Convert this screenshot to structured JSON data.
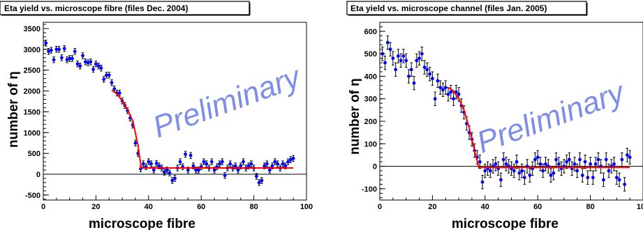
{
  "chart_data": [
    {
      "type": "scatter",
      "title": "Eta yield vs. microscope fibre (files Dec. 2004)",
      "xlabel": "microscope  fibre",
      "ylabel": "number of η",
      "watermark": "Preliminary",
      "xlim": [
        0,
        100
      ],
      "ylim": [
        -620,
        3650
      ],
      "xticks": [
        0,
        20,
        40,
        60,
        80,
        100
      ],
      "yticks": [
        -500,
        0,
        500,
        1000,
        1500,
        2000,
        2500,
        3000,
        3500
      ],
      "grid": false,
      "marker_color": "#0000ff",
      "fit_color": "#ff0000",
      "points": [
        [
          1,
          3150,
          70
        ],
        [
          2,
          2950,
          70
        ],
        [
          3,
          2980,
          70
        ],
        [
          4,
          2750,
          70
        ],
        [
          5,
          3000,
          70
        ],
        [
          6,
          3000,
          70
        ],
        [
          7,
          2800,
          70
        ],
        [
          8,
          3020,
          70
        ],
        [
          9,
          2750,
          70
        ],
        [
          10,
          2780,
          70
        ],
        [
          11,
          2780,
          70
        ],
        [
          12,
          2950,
          70
        ],
        [
          13,
          2650,
          70
        ],
        [
          14,
          2600,
          70
        ],
        [
          15,
          2850,
          70
        ],
        [
          16,
          2700,
          70
        ],
        [
          17,
          2680,
          70
        ],
        [
          18,
          2700,
          70
        ],
        [
          19,
          2520,
          70
        ],
        [
          20,
          2650,
          70
        ],
        [
          21,
          2600,
          70
        ],
        [
          22,
          2550,
          70
        ],
        [
          23,
          2280,
          70
        ],
        [
          24,
          2380,
          70
        ],
        [
          25,
          2380,
          70
        ],
        [
          26,
          2200,
          70
        ],
        [
          27,
          2050,
          70
        ],
        [
          28,
          1950,
          70
        ],
        [
          29,
          1950,
          70
        ],
        [
          30,
          1760,
          70
        ],
        [
          31,
          1650,
          70
        ],
        [
          32,
          1530,
          70
        ],
        [
          33,
          1350,
          70
        ],
        [
          34,
          1180,
          70
        ],
        [
          35,
          750,
          70
        ],
        [
          36,
          500,
          70
        ],
        [
          37,
          130,
          70
        ],
        [
          38,
          250,
          70
        ],
        [
          39,
          180,
          70
        ],
        [
          40,
          300,
          70
        ],
        [
          41,
          250,
          70
        ],
        [
          42,
          100,
          70
        ],
        [
          43,
          260,
          70
        ],
        [
          44,
          200,
          70
        ],
        [
          45,
          150,
          70
        ],
        [
          46,
          50,
          70
        ],
        [
          47,
          100,
          70
        ],
        [
          48,
          30,
          70
        ],
        [
          49,
          -150,
          70
        ],
        [
          50,
          -100,
          70
        ],
        [
          51,
          150,
          70
        ],
        [
          52,
          300,
          70
        ],
        [
          53,
          180,
          70
        ],
        [
          54,
          480,
          70
        ],
        [
          55,
          100,
          70
        ],
        [
          56,
          450,
          70
        ],
        [
          57,
          200,
          70
        ],
        [
          58,
          100,
          70
        ],
        [
          59,
          100,
          70
        ],
        [
          60,
          180,
          70
        ],
        [
          61,
          300,
          70
        ],
        [
          62,
          250,
          70
        ],
        [
          63,
          150,
          70
        ],
        [
          64,
          300,
          70
        ],
        [
          65,
          100,
          70
        ],
        [
          66,
          180,
          70
        ],
        [
          67,
          250,
          70
        ],
        [
          68,
          300,
          70
        ],
        [
          69,
          -30,
          70
        ],
        [
          70,
          150,
          70
        ],
        [
          71,
          250,
          70
        ],
        [
          72,
          150,
          70
        ],
        [
          73,
          200,
          70
        ],
        [
          74,
          100,
          70
        ],
        [
          75,
          200,
          70
        ],
        [
          76,
          300,
          70
        ],
        [
          77,
          150,
          70
        ],
        [
          78,
          200,
          70
        ],
        [
          79,
          250,
          70
        ],
        [
          80,
          150,
          70
        ],
        [
          81,
          -50,
          70
        ],
        [
          82,
          -200,
          70
        ],
        [
          83,
          -150,
          70
        ],
        [
          84,
          200,
          70
        ],
        [
          85,
          250,
          70
        ],
        [
          86,
          100,
          70
        ],
        [
          87,
          200,
          70
        ],
        [
          88,
          300,
          70
        ],
        [
          89,
          250,
          70
        ],
        [
          90,
          150,
          70
        ],
        [
          91,
          250,
          70
        ],
        [
          92,
          200,
          70
        ],
        [
          93,
          300,
          70
        ],
        [
          94,
          350,
          70
        ],
        [
          95,
          380,
          70
        ]
      ],
      "fit": [
        [
          26,
          2020
        ],
        [
          28,
          1930
        ],
        [
          30,
          1760
        ],
        [
          32,
          1560
        ],
        [
          34,
          1280
        ],
        [
          36,
          700
        ],
        [
          37.2,
          150
        ],
        [
          40,
          150
        ],
        [
          60,
          150
        ],
        [
          80,
          150
        ],
        [
          95,
          150
        ]
      ]
    },
    {
      "type": "scatter",
      "title": "Eta yield vs. microscope channel (files Jan. 2005)",
      "xlabel": "microscope  fibre",
      "ylabel": "number of η",
      "watermark": "Preliminary",
      "xlim": [
        0,
        100
      ],
      "ylim": [
        -150,
        640
      ],
      "xticks": [
        0,
        20,
        40,
        60,
        80,
        100
      ],
      "yticks": [
        -100,
        0,
        100,
        200,
        300,
        400,
        500,
        600
      ],
      "grid": false,
      "marker_color": "#0000ff",
      "fit_color": "#ff0000",
      "points": [
        [
          1,
          500,
          30
        ],
        [
          2,
          460,
          30
        ],
        [
          3,
          550,
          30
        ],
        [
          4,
          520,
          30
        ],
        [
          5,
          480,
          30
        ],
        [
          6,
          430,
          30
        ],
        [
          7,
          490,
          30
        ],
        [
          8,
          470,
          30
        ],
        [
          9,
          490,
          30
        ],
        [
          10,
          470,
          30
        ],
        [
          11,
          400,
          30
        ],
        [
          12,
          430,
          30
        ],
        [
          13,
          370,
          30
        ],
        [
          14,
          470,
          30
        ],
        [
          15,
          480,
          30
        ],
        [
          16,
          500,
          30
        ],
        [
          17,
          440,
          30
        ],
        [
          18,
          430,
          30
        ],
        [
          19,
          410,
          30
        ],
        [
          20,
          390,
          30
        ],
        [
          21,
          300,
          30
        ],
        [
          22,
          380,
          30
        ],
        [
          23,
          350,
          30
        ],
        [
          24,
          340,
          30
        ],
        [
          25,
          350,
          30
        ],
        [
          26,
          320,
          30
        ],
        [
          27,
          330,
          30
        ],
        [
          28,
          300,
          30
        ],
        [
          29,
          330,
          30
        ],
        [
          30,
          320,
          30
        ],
        [
          31,
          270,
          30
        ],
        [
          32,
          240,
          30
        ],
        [
          33,
          190,
          30
        ],
        [
          34,
          150,
          30
        ],
        [
          35,
          120,
          30
        ],
        [
          36,
          70,
          30
        ],
        [
          37,
          40,
          30
        ],
        [
          38,
          20,
          30
        ],
        [
          39,
          -70,
          30
        ],
        [
          40,
          -20,
          30
        ],
        [
          41,
          -10,
          30
        ],
        [
          42,
          -20,
          30
        ],
        [
          43,
          0,
          30
        ],
        [
          44,
          10,
          30
        ],
        [
          45,
          -10,
          30
        ],
        [
          46,
          -60,
          30
        ],
        [
          47,
          30,
          30
        ],
        [
          48,
          10,
          30
        ],
        [
          49,
          0,
          30
        ],
        [
          50,
          -10,
          30
        ],
        [
          51,
          -20,
          30
        ],
        [
          52,
          20,
          30
        ],
        [
          53,
          -30,
          30
        ],
        [
          54,
          -20,
          30
        ],
        [
          55,
          -50,
          30
        ],
        [
          56,
          0,
          30
        ],
        [
          57,
          -40,
          30
        ],
        [
          58,
          -10,
          30
        ],
        [
          59,
          30,
          30
        ],
        [
          60,
          40,
          30
        ],
        [
          61,
          10,
          30
        ],
        [
          62,
          -20,
          30
        ],
        [
          63,
          10,
          30
        ],
        [
          64,
          0,
          30
        ],
        [
          65,
          -40,
          30
        ],
        [
          66,
          -30,
          30
        ],
        [
          67,
          30,
          30
        ],
        [
          68,
          10,
          30
        ],
        [
          69,
          -10,
          30
        ],
        [
          70,
          0,
          30
        ],
        [
          71,
          20,
          30
        ],
        [
          72,
          30,
          30
        ],
        [
          73,
          -10,
          30
        ],
        [
          74,
          10,
          30
        ],
        [
          75,
          -20,
          30
        ],
        [
          76,
          30,
          30
        ],
        [
          77,
          -40,
          30
        ],
        [
          78,
          20,
          30
        ],
        [
          79,
          -50,
          30
        ],
        [
          80,
          10,
          30
        ],
        [
          81,
          -50,
          30
        ],
        [
          82,
          10,
          30
        ],
        [
          83,
          30,
          30
        ],
        [
          84,
          0,
          30
        ],
        [
          85,
          -60,
          30
        ],
        [
          86,
          30,
          30
        ],
        [
          87,
          -20,
          30
        ],
        [
          88,
          0,
          30
        ],
        [
          89,
          10,
          30
        ],
        [
          90,
          -50,
          30
        ],
        [
          91,
          -60,
          30
        ],
        [
          92,
          30,
          30
        ],
        [
          93,
          -80,
          30
        ],
        [
          94,
          50,
          30
        ],
        [
          95,
          40,
          30
        ]
      ],
      "fit": [
        [
          26,
          350
        ],
        [
          28,
          335
        ],
        [
          30,
          300
        ],
        [
          32,
          250
        ],
        [
          34,
          170
        ],
        [
          36,
          70
        ],
        [
          37.6,
          -5
        ],
        [
          40,
          -5
        ],
        [
          60,
          -5
        ],
        [
          80,
          -5
        ],
        [
          95,
          -5
        ]
      ]
    }
  ]
}
